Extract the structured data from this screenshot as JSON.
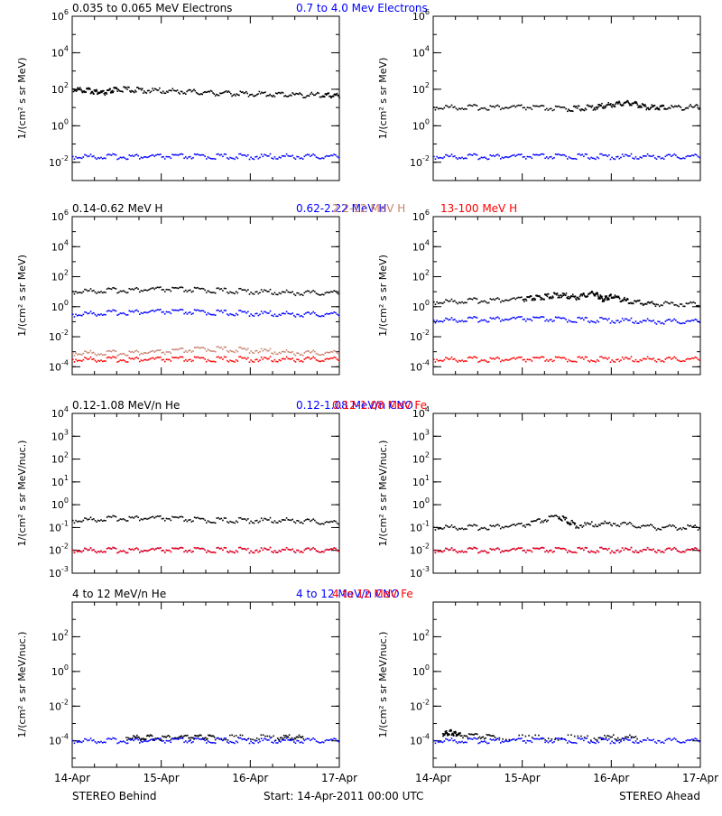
{
  "colors": {
    "black": "#000000",
    "blue": "#0000ff",
    "salmon": "#c8826e",
    "red": "#ff0000"
  },
  "footer": {
    "left": "STEREO Behind",
    "center": "Start: 14-Apr-2011 00:00 UTC",
    "right": "STEREO Ahead"
  },
  "chart_data": [
    {
      "type": "scatter",
      "row": 0,
      "side": "behind",
      "title_parts": [
        {
          "text": "0.035 to 0.065 MeV Electrons",
          "color": "black"
        },
        {
          "text": "0.7 to 4.0 Mev Electrons",
          "color": "blue"
        }
      ],
      "ylabel": "1/(cm² s sr MeV)",
      "yscale": "log",
      "ylim": [
        0.001,
        1000000
      ],
      "yticks": [
        {
          "v": 0.01,
          "b": "10",
          "e": "-2"
        },
        {
          "v": 1,
          "b": "10",
          "e": "0"
        },
        {
          "v": 100,
          "b": "10",
          "e": "2"
        },
        {
          "v": 10000,
          "b": "10",
          "e": "4"
        },
        {
          "v": 1000000,
          "b": "10",
          "e": "6"
        }
      ],
      "xlabels": [],
      "xlim": [
        0,
        3
      ],
      "series": [
        {
          "color": "black",
          "x": [
            0,
            0.2,
            0.35,
            0.5,
            0.8,
            1.2,
            1.6,
            2.0,
            2.4,
            2.8,
            3.0
          ],
          "y": [
            100,
            80,
            60,
            100,
            85,
            75,
            60,
            55,
            50,
            45,
            45
          ]
        },
        {
          "color": "blue",
          "x": [
            0,
            0.5,
            1,
            1.5,
            2,
            2.5,
            3
          ],
          "y": [
            0.02,
            0.02,
            0.02,
            0.02,
            0.02,
            0.02,
            0.02
          ]
        }
      ]
    },
    {
      "type": "scatter",
      "row": 0,
      "side": "ahead",
      "title_parts": [],
      "ylabel": "1/(cm² s sr MeV)",
      "yscale": "log",
      "ylim": [
        0.001,
        1000000
      ],
      "yticks": [
        {
          "v": 0.01,
          "b": "10",
          "e": "-2"
        },
        {
          "v": 1,
          "b": "10",
          "e": "0"
        },
        {
          "v": 100,
          "b": "10",
          "e": "2"
        },
        {
          "v": 10000,
          "b": "10",
          "e": "4"
        },
        {
          "v": 1000000,
          "b": "10",
          "e": "6"
        }
      ],
      "xlabels": [],
      "xlim": [
        0,
        3
      ],
      "series": [
        {
          "color": "black",
          "x": [
            0,
            0.5,
            1,
            1.5,
            1.8,
            2.0,
            2.2,
            2.4,
            2.6,
            3.0
          ],
          "y": [
            10,
            10,
            10,
            8,
            10,
            14,
            18,
            10,
            10,
            10
          ]
        },
        {
          "color": "blue",
          "x": [
            0,
            0.5,
            1,
            1.5,
            2,
            2.5,
            3
          ],
          "y": [
            0.02,
            0.02,
            0.02,
            0.02,
            0.02,
            0.02,
            0.02
          ]
        }
      ]
    },
    {
      "type": "scatter",
      "row": 1,
      "side": "behind",
      "title_parts": [
        {
          "text": "0.14-0.62 MeV H",
          "color": "black"
        },
        {
          "text": "0.62-2.22 MeV H",
          "color": "blue"
        },
        {
          "text": "2.2-12 MeV H",
          "color": "salmon"
        },
        {
          "text": "13-100 MeV H",
          "color": "red"
        }
      ],
      "ylabel": "1/(cm² s sr MeV)",
      "yscale": "log",
      "ylim": [
        3e-05,
        1000000
      ],
      "yticks": [
        {
          "v": 0.0001,
          "b": "10",
          "e": "-4"
        },
        {
          "v": 0.01,
          "b": "10",
          "e": "-2"
        },
        {
          "v": 1,
          "b": "10",
          "e": "0"
        },
        {
          "v": 100,
          "b": "10",
          "e": "2"
        },
        {
          "v": 10000,
          "b": "10",
          "e": "4"
        },
        {
          "v": 1000000,
          "b": "10",
          "e": "6"
        }
      ],
      "xlabels": [],
      "xlim": [
        0,
        3
      ],
      "series": [
        {
          "color": "black",
          "x": [
            0,
            0.5,
            1,
            1.5,
            2,
            2.5,
            3
          ],
          "y": [
            10,
            12,
            14,
            12,
            10,
            8,
            8
          ]
        },
        {
          "color": "blue",
          "x": [
            0,
            0.5,
            1,
            1.5,
            2,
            2.5,
            3
          ],
          "y": [
            0.3,
            0.4,
            0.45,
            0.4,
            0.35,
            0.3,
            0.3
          ]
        },
        {
          "color": "salmon",
          "x": [
            0,
            0.5,
            1,
            1.5,
            2,
            2.5,
            3
          ],
          "y": [
            0.0008,
            0.0008,
            0.0009,
            0.0015,
            0.0012,
            0.0008,
            0.0008
          ]
        },
        {
          "color": "red",
          "x": [
            0,
            0.5,
            1,
            1.5,
            2,
            2.5,
            3
          ],
          "y": [
            0.0003,
            0.0003,
            0.0003,
            0.0003,
            0.0003,
            0.0003,
            0.0003
          ]
        }
      ]
    },
    {
      "type": "scatter",
      "row": 1,
      "side": "ahead",
      "title_parts": [],
      "ylabel": "1/(cm² s sr MeV)",
      "yscale": "log",
      "ylim": [
        3e-05,
        1000000
      ],
      "yticks": [
        {
          "v": 0.0001,
          "b": "10",
          "e": "-4"
        },
        {
          "v": 0.01,
          "b": "10",
          "e": "-2"
        },
        {
          "v": 1,
          "b": "10",
          "e": "0"
        },
        {
          "v": 100,
          "b": "10",
          "e": "2"
        },
        {
          "v": 10000,
          "b": "10",
          "e": "4"
        },
        {
          "v": 1000000,
          "b": "10",
          "e": "6"
        }
      ],
      "xlabels": [],
      "xlim": [
        0,
        3
      ],
      "series": [
        {
          "color": "black",
          "x": [
            0,
            0.5,
            1,
            1.2,
            1.4,
            1.6,
            1.8,
            1.9,
            2.0,
            2.2,
            2.5,
            3.0
          ],
          "y": [
            2,
            2.5,
            3,
            4,
            6,
            4,
            8,
            3,
            5,
            2,
            1.5,
            1.5
          ]
        },
        {
          "color": "blue",
          "x": [
            0,
            0.5,
            1,
            1.5,
            2,
            2.5,
            3
          ],
          "y": [
            0.12,
            0.14,
            0.15,
            0.13,
            0.12,
            0.1,
            0.1
          ]
        },
        {
          "color": "red",
          "x": [
            0,
            0.5,
            1,
            1.5,
            2,
            2.5,
            3
          ],
          "y": [
            0.0003,
            0.0003,
            0.0003,
            0.0003,
            0.0003,
            0.0003,
            0.0003
          ]
        }
      ]
    },
    {
      "type": "scatter",
      "row": 2,
      "side": "behind",
      "title_parts": [
        {
          "text": "0.12-1.08 MeV/n He",
          "color": "black"
        },
        {
          "text": "0.12-1.08 MeV/n CNO",
          "color": "blue"
        },
        {
          "text": "0.12-1.08 MeV Fe",
          "color": "red"
        }
      ],
      "ylabel": "1/(cm² s sr MeV/nuc.)",
      "yscale": "log",
      "ylim": [
        0.001,
        10000
      ],
      "yticks": [
        {
          "v": 0.001,
          "b": "10",
          "e": "-3"
        },
        {
          "v": 0.01,
          "b": "10",
          "e": "-2"
        },
        {
          "v": 0.1,
          "b": "10",
          "e": "-1"
        },
        {
          "v": 1,
          "b": "10",
          "e": "0"
        },
        {
          "v": 10,
          "b": "10",
          "e": "1"
        },
        {
          "v": 100,
          "b": "10",
          "e": "2"
        },
        {
          "v": 1000,
          "b": "10",
          "e": "3"
        },
        {
          "v": 10000,
          "b": "10",
          "e": "4"
        }
      ],
      "xlabels": [],
      "xlim": [
        0,
        3
      ],
      "series": [
        {
          "color": "black",
          "x": [
            0,
            0.5,
            1,
            1.5,
            2,
            2.5,
            3
          ],
          "y": [
            0.2,
            0.25,
            0.25,
            0.2,
            0.2,
            0.2,
            0.15
          ]
        },
        {
          "color": "blue",
          "x": [
            0,
            0.5,
            1,
            1.5,
            2,
            2.5,
            3
          ],
          "y": [
            0.01,
            0.01,
            0.01,
            0.01,
            0.01,
            0.01,
            0.01
          ]
        },
        {
          "color": "red",
          "x": [
            0,
            0.5,
            1,
            1.5,
            2,
            2.5,
            3
          ],
          "y": [
            0.01,
            0.01,
            0.01,
            0.01,
            0.01,
            0.01,
            0.01
          ]
        }
      ]
    },
    {
      "type": "scatter",
      "row": 2,
      "side": "ahead",
      "title_parts": [],
      "ylabel": "1/(cm² s sr MeV/nuc.)",
      "yscale": "log",
      "ylim": [
        0.001,
        10000
      ],
      "yticks": [
        {
          "v": 0.001,
          "b": "10",
          "e": "-3"
        },
        {
          "v": 0.01,
          "b": "10",
          "e": "-2"
        },
        {
          "v": 0.1,
          "b": "10",
          "e": "-1"
        },
        {
          "v": 1,
          "b": "10",
          "e": "0"
        },
        {
          "v": 10,
          "b": "10",
          "e": "1"
        },
        {
          "v": 100,
          "b": "10",
          "e": "2"
        },
        {
          "v": 1000,
          "b": "10",
          "e": "3"
        },
        {
          "v": 10000,
          "b": "10",
          "e": "4"
        }
      ],
      "xlabels": [],
      "xlim": [
        0,
        3
      ],
      "series": [
        {
          "color": "black",
          "x": [
            0,
            0.5,
            1,
            1.4,
            1.6,
            2,
            2.5,
            3
          ],
          "y": [
            0.1,
            0.1,
            0.12,
            0.3,
            0.12,
            0.15,
            0.1,
            0.1
          ]
        },
        {
          "color": "blue",
          "x": [
            0,
            0.5,
            1,
            1.5,
            2,
            2.5,
            3
          ],
          "y": [
            0.01,
            0.01,
            0.01,
            0.01,
            0.01,
            0.01,
            0.01
          ]
        },
        {
          "color": "red",
          "x": [
            0,
            0.5,
            1,
            1.5,
            2,
            2.5,
            3
          ],
          "y": [
            0.01,
            0.01,
            0.01,
            0.01,
            0.01,
            0.01,
            0.01
          ]
        }
      ]
    },
    {
      "type": "scatter",
      "row": 3,
      "side": "behind",
      "title_parts": [
        {
          "text": "4 to 12 MeV/n He",
          "color": "black"
        },
        {
          "text": "4 to 12 MeV/n CNO",
          "color": "blue"
        },
        {
          "text": "4 to 12 MeV Fe",
          "color": "red"
        }
      ],
      "ylabel": "1/(cm² s sr MeV/nuc.)",
      "yscale": "log",
      "ylim": [
        3e-06,
        10000
      ],
      "yticks": [
        {
          "v": 0.0001,
          "b": "10",
          "e": "-4"
        },
        {
          "v": 0.01,
          "b": "10",
          "e": "-2"
        },
        {
          "v": 1,
          "b": "10",
          "e": "0"
        },
        {
          "v": 100,
          "b": "10",
          "e": "2"
        }
      ],
      "xlabels": [
        "14-Apr",
        "15-Apr",
        "16-Apr",
        "17-Apr"
      ],
      "xlim": [
        0,
        3
      ],
      "series": [
        {
          "color": "black",
          "x": [
            0.6,
            0.9,
            1.3,
            1.6,
            2.3,
            2.6
          ],
          "y": [
            0.00015,
            0.00015,
            0.00015,
            0.00015,
            0.00015,
            0.00015
          ]
        },
        {
          "color": "blue",
          "x": [
            0,
            0.5,
            1,
            1.5,
            2,
            2.5,
            3
          ],
          "y": [
            0.0001,
            0.0001,
            0.0001,
            0.0001,
            0.0001,
            0.0001,
            0.0001
          ]
        }
      ]
    },
    {
      "type": "scatter",
      "row": 3,
      "side": "ahead",
      "title_parts": [],
      "ylabel": "1/(cm² s sr MeV/nuc.)",
      "yscale": "log",
      "ylim": [
        3e-06,
        10000
      ],
      "yticks": [
        {
          "v": 0.0001,
          "b": "10",
          "e": "-4"
        },
        {
          "v": 0.01,
          "b": "10",
          "e": "-2"
        },
        {
          "v": 1,
          "b": "10",
          "e": "0"
        },
        {
          "v": 100,
          "b": "10",
          "e": "2"
        }
      ],
      "xlabels": [
        "14-Apr",
        "15-Apr",
        "16-Apr",
        "17-Apr"
      ],
      "xlim": [
        0,
        3
      ],
      "series": [
        {
          "color": "black",
          "x": [
            0.1,
            0.2,
            0.3,
            0.7,
            1.8,
            2.3
          ],
          "y": [
            0.00025,
            0.0003,
            0.0002,
            0.00015,
            0.00015,
            0.00015
          ]
        },
        {
          "color": "blue",
          "x": [
            0,
            0.5,
            1,
            1.5,
            2,
            2.5,
            3
          ],
          "y": [
            0.0001,
            0.0001,
            0.0001,
            0.0001,
            0.0001,
            0.0001,
            0.0001
          ]
        }
      ]
    }
  ]
}
